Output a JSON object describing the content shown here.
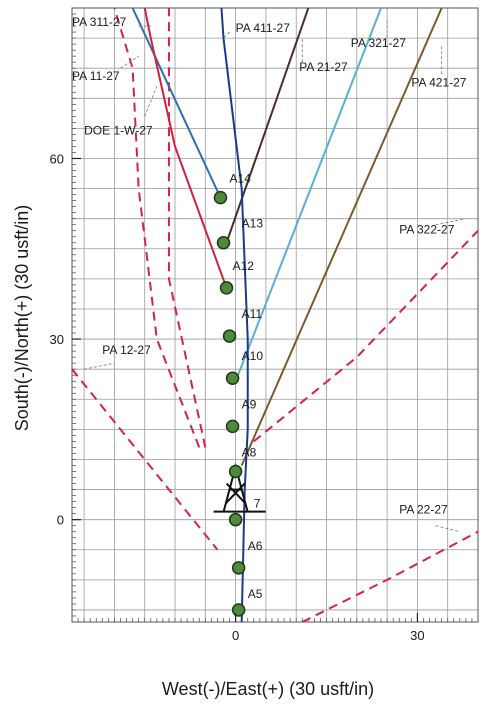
{
  "chart_data": {
    "type": "scatter",
    "title": "",
    "xlabel": "West(-)/East(+) (30 usft/in)",
    "ylabel": "South(-)/North(+) (30 usft/in)",
    "xlim": [
      -27,
      40
    ],
    "ylim": [
      -17,
      85
    ],
    "x_ticks": [
      {
        "v": 0,
        "label": "0"
      },
      {
        "v": 30,
        "label": "30"
      }
    ],
    "y_ticks": [
      {
        "v": 0,
        "label": "0"
      },
      {
        "v": 30,
        "label": "30"
      },
      {
        "v": 60,
        "label": "60"
      }
    ],
    "grid": true,
    "colors": {
      "grid": "#9a9a9a",
      "lease": "#d6204e",
      "point_fill": "#4e8a3a",
      "point_stroke": "#20381a",
      "rig": "#111111",
      "leader": "#777777"
    },
    "stations": [
      {
        "name": "A5",
        "x": 0.5,
        "y": -15,
        "lx": 2,
        "ly": -13
      },
      {
        "name": "A6",
        "x": 0.5,
        "y": -8,
        "lx": 2,
        "ly": -5
      },
      {
        "name": "7",
        "x": 0,
        "y": 0,
        "lx": 3,
        "ly": 2
      },
      {
        "name": "A8",
        "x": 0,
        "y": 8,
        "lx": 1,
        "ly": 10.5
      },
      {
        "name": "A9",
        "x": -0.5,
        "y": 15.5,
        "lx": 1,
        "ly": 18.5
      },
      {
        "name": "A10",
        "x": -0.5,
        "y": 23.5,
        "lx": 1,
        "ly": 26.5
      },
      {
        "name": "A11",
        "x": -1,
        "y": 30.5,
        "lx": 1,
        "ly": 33.5
      },
      {
        "name": "A12",
        "x": -1.5,
        "y": 38.5,
        "lx": -0.5,
        "ly": 41.5
      },
      {
        "name": "A13",
        "x": -2,
        "y": 46,
        "lx": 1,
        "ly": 48.5
      },
      {
        "name": "A14",
        "x": -2.5,
        "y": 53.5,
        "lx": -1,
        "ly": 56
      }
    ],
    "wellbores": [
      {
        "name": "A14",
        "color": "#2d6fae",
        "points": [
          [
            -2.5,
            53.5
          ],
          [
            -17,
            85
          ]
        ]
      },
      {
        "name": "A12",
        "color": "#d0203f",
        "points": [
          [
            -1.5,
            38.5
          ],
          [
            -10,
            62
          ],
          [
            -14,
            80
          ],
          [
            -15,
            85
          ]
        ]
      },
      {
        "name": "A13",
        "color": "#4a2e2e",
        "points": [
          [
            -1.5,
            46
          ],
          [
            12,
            85
          ]
        ]
      },
      {
        "name": "PA 321-27",
        "color": "#5aaed8",
        "points": [
          [
            0,
            23
          ],
          [
            24,
            85
          ]
        ]
      },
      {
        "name": "PA 421-27",
        "color": "#7a5b2e",
        "points": [
          [
            1,
            9
          ],
          [
            34,
            85
          ]
        ]
      },
      {
        "name": "A7",
        "color": "#1a3a8a",
        "points": [
          [
            -3,
            95
          ],
          [
            -2,
            80
          ],
          [
            1,
            55
          ],
          [
            2,
            30
          ],
          [
            2,
            15
          ],
          [
            1.5,
            5
          ],
          [
            1,
            -17
          ]
        ]
      }
    ],
    "lease_lines": [
      {
        "points": [
          [
            -27,
            25
          ],
          [
            -15,
            10
          ],
          [
            -3,
            -5
          ]
        ]
      },
      {
        "points": [
          [
            -6,
            12
          ],
          [
            -13,
            30
          ],
          [
            -16,
            55
          ],
          [
            -17,
            75
          ],
          [
            -20,
            85
          ]
        ]
      },
      {
        "points": [
          [
            -5,
            12
          ],
          [
            -11,
            40
          ],
          [
            -11,
            85
          ]
        ]
      },
      {
        "points": [
          [
            3,
            13
          ],
          [
            20,
            27
          ],
          [
            40,
            48
          ]
        ]
      },
      {
        "points": [
          [
            11,
            -17
          ],
          [
            25,
            -10
          ],
          [
            40,
            -2
          ]
        ]
      }
    ],
    "well_labels": [
      {
        "text": "PA 311-27",
        "x": -27,
        "y": 82,
        "leader": [
          [
            -16,
            82
          ],
          [
            -14,
            82
          ]
        ]
      },
      {
        "text": "PA 411-27",
        "x": 0,
        "y": 81,
        "leader": [
          [
            -1,
            81
          ],
          [
            -2,
            80
          ]
        ]
      },
      {
        "text": "PA 321-27",
        "x": 19,
        "y": 78.5,
        "leader": [
          [
            25,
            80
          ],
          [
            25,
            83
          ]
        ]
      },
      {
        "text": "PA 11-27",
        "x": -27,
        "y": 73,
        "leader": [
          [
            -19,
            75
          ],
          [
            -16,
            77
          ]
        ]
      },
      {
        "text": "PA 21-27",
        "x": 10.5,
        "y": 74.5,
        "leader": [
          [
            11,
            76
          ],
          [
            11,
            80
          ]
        ]
      },
      {
        "text": "PA 421-27",
        "x": 29,
        "y": 72,
        "leader": [
          [
            34,
            74
          ],
          [
            34,
            79
          ]
        ]
      },
      {
        "text": "DOE 1-W-27",
        "x": -25,
        "y": 64,
        "leader": [
          [
            -15,
            67
          ],
          [
            -13,
            72
          ]
        ]
      },
      {
        "text": "PA 322-27",
        "x": 27,
        "y": 47.5,
        "leader": [
          [
            33,
            49
          ],
          [
            38,
            50
          ]
        ]
      },
      {
        "text": "PA 12-27",
        "x": -22,
        "y": 27.5,
        "leader": [
          [
            -25,
            25
          ],
          [
            -20,
            26
          ]
        ]
      },
      {
        "text": "PA 22-27",
        "x": 27,
        "y": 1,
        "leader": [
          [
            33,
            -1
          ],
          [
            37,
            -2
          ]
        ]
      }
    ],
    "rig": {
      "x": 0,
      "y": 3
    }
  }
}
